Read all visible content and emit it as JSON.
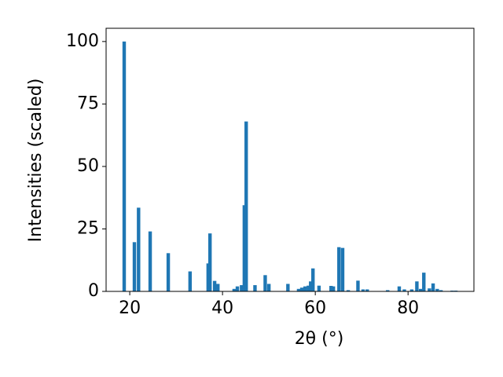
{
  "chart_data": {
    "type": "bar",
    "xlabel": "2θ (°)",
    "ylabel": "Intensities (scaled)",
    "color": "#1f77b4",
    "x": [
      18.8,
      21.0,
      21.9,
      24.4,
      28.3,
      33.0,
      36.9,
      37.3,
      38.3,
      39.0,
      42.5,
      43.2,
      44.1,
      44.7,
      45.1,
      47.0,
      49.2,
      50.0,
      54.1,
      56.4,
      57.1,
      57.8,
      58.5,
      59.0,
      59.5,
      60.8,
      63.4,
      63.9,
      65.1,
      65.9,
      67.1,
      69.2,
      70.3,
      71.2,
      75.6,
      78.1,
      79.2,
      80.8,
      81.9,
      82.7,
      83.4,
      84.6,
      85.4,
      86.3,
      87.1,
      89.5,
      90.3
    ],
    "values": [
      100,
      19.7,
      33.5,
      24,
      15.3,
      8,
      11.2,
      23.2,
      4.2,
      3,
      1,
      2,
      2.5,
      34.5,
      68,
      2.5,
      6.5,
      3,
      3,
      1,
      1.5,
      2,
      2.3,
      4,
      9.2,
      2.3,
      2.2,
      2,
      17.7,
      17.4,
      0.5,
      4.3,
      0.8,
      0.8,
      0.5,
      2,
      0.8,
      0.8,
      4,
      1,
      7.5,
      1.2,
      3.2,
      1,
      0.5,
      0.3,
      0.3
    ],
    "xlim": [
      14.9,
      94.2
    ],
    "ylim": [
      0,
      105.3
    ],
    "xticks": [
      20,
      40,
      60,
      80
    ],
    "yticks": [
      0,
      25,
      50,
      75,
      100
    ]
  }
}
